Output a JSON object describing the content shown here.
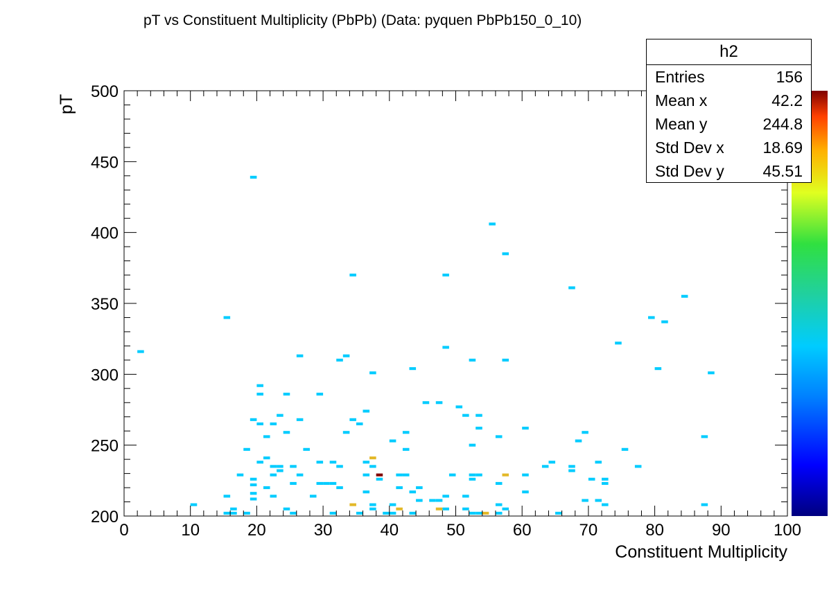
{
  "chart_data": {
    "type": "heatmap",
    "title": "pT vs Constituent Multiplicity (PbPb) (Data: pyquen PbPb150_0_10)",
    "xlabel": "Constituent Multiplicity",
    "ylabel": "pT",
    "xlim": [
      0,
      100
    ],
    "ylim": [
      200,
      500
    ],
    "x_ticks": [
      "0",
      "10",
      "20",
      "30",
      "40",
      "50",
      "60",
      "70",
      "80",
      "90",
      "100"
    ],
    "y_ticks": [
      "200",
      "250",
      "300",
      "350",
      "400",
      "450",
      "500"
    ],
    "bin_width": {
      "x": 1,
      "y": 2
    },
    "colorbar": {
      "min": 0,
      "max": 3,
      "palette": "rainbow (blue → cyan → green → yellow → red → dark red)"
    },
    "cells": [
      [
        2,
        315,
        1
      ],
      [
        10,
        207,
        1
      ],
      [
        15,
        201,
        1
      ],
      [
        16,
        201,
        1
      ],
      [
        15,
        213,
        1
      ],
      [
        15,
        339,
        1
      ],
      [
        16,
        204,
        1
      ],
      [
        17,
        228,
        1
      ],
      [
        18,
        201,
        1
      ],
      [
        18,
        246,
        1
      ],
      [
        19,
        438,
        1
      ],
      [
        19,
        267,
        1
      ],
      [
        19,
        225,
        1
      ],
      [
        19,
        221,
        1
      ],
      [
        19,
        215,
        1
      ],
      [
        19,
        211,
        1
      ],
      [
        20,
        291,
        1
      ],
      [
        20,
        285,
        1
      ],
      [
        20,
        264,
        1
      ],
      [
        20,
        237,
        1
      ],
      [
        21,
        255,
        1
      ],
      [
        21,
        240,
        1
      ],
      [
        21,
        219,
        1
      ],
      [
        22,
        264,
        1
      ],
      [
        22,
        234,
        1
      ],
      [
        22,
        228,
        1
      ],
      [
        22,
        213,
        1
      ],
      [
        23,
        270,
        1
      ],
      [
        23,
        234,
        1
      ],
      [
        23,
        231,
        1
      ],
      [
        24,
        285,
        1
      ],
      [
        24,
        258,
        1
      ],
      [
        24,
        204,
        1
      ],
      [
        25,
        234,
        1
      ],
      [
        25,
        222,
        1
      ],
      [
        25,
        201,
        1
      ],
      [
        26,
        312,
        1
      ],
      [
        26,
        267,
        1
      ],
      [
        26,
        228,
        1
      ],
      [
        27,
        246,
        1
      ],
      [
        28,
        213,
        1
      ],
      [
        29,
        285,
        1
      ],
      [
        29,
        237,
        1
      ],
      [
        29,
        222,
        1
      ],
      [
        30,
        222,
        1
      ],
      [
        31,
        222,
        1
      ],
      [
        31,
        237,
        1
      ],
      [
        31,
        201,
        1
      ],
      [
        32,
        309,
        1
      ],
      [
        32,
        234,
        1
      ],
      [
        32,
        219,
        1
      ],
      [
        33,
        312,
        1
      ],
      [
        33,
        258,
        1
      ],
      [
        34,
        369,
        1
      ],
      [
        34,
        267,
        1
      ],
      [
        34,
        207,
        2
      ],
      [
        35,
        264,
        1
      ],
      [
        35,
        201,
        1
      ],
      [
        36,
        273,
        1
      ],
      [
        36,
        237,
        1
      ],
      [
        36,
        228,
        1
      ],
      [
        36,
        216,
        1
      ],
      [
        37,
        300,
        1
      ],
      [
        37,
        240,
        2
      ],
      [
        37,
        234,
        1
      ],
      [
        37,
        207,
        1
      ],
      [
        37,
        204,
        1
      ],
      [
        38,
        228,
        3
      ],
      [
        38,
        225,
        1
      ],
      [
        39,
        201,
        1
      ],
      [
        40,
        252,
        1
      ],
      [
        40,
        207,
        1
      ],
      [
        40,
        201,
        1
      ],
      [
        41,
        228,
        1
      ],
      [
        41,
        219,
        1
      ],
      [
        41,
        204,
        2
      ],
      [
        42,
        258,
        1
      ],
      [
        42,
        246,
        1
      ],
      [
        42,
        228,
        1
      ],
      [
        43,
        303,
        1
      ],
      [
        43,
        216,
        1
      ],
      [
        43,
        201,
        1
      ],
      [
        44,
        219,
        1
      ],
      [
        44,
        210,
        1
      ],
      [
        45,
        279,
        1
      ],
      [
        46,
        210,
        1
      ],
      [
        47,
        279,
        1
      ],
      [
        47,
        210,
        1
      ],
      [
        47,
        204,
        2
      ],
      [
        48,
        369,
        1
      ],
      [
        48,
        318,
        1
      ],
      [
        48,
        213,
        1
      ],
      [
        48,
        204,
        1
      ],
      [
        49,
        228,
        1
      ],
      [
        50,
        276,
        1
      ],
      [
        51,
        270,
        1
      ],
      [
        51,
        204,
        1
      ],
      [
        51,
        213,
        1
      ],
      [
        52,
        309,
        1
      ],
      [
        52,
        249,
        1
      ],
      [
        52,
        228,
        1
      ],
      [
        52,
        225,
        1
      ],
      [
        52,
        201,
        1
      ],
      [
        53,
        270,
        1
      ],
      [
        53,
        261,
        1
      ],
      [
        53,
        228,
        1
      ],
      [
        53,
        201,
        1
      ],
      [
        54,
        201,
        2
      ],
      [
        55,
        405,
        1
      ],
      [
        56,
        255,
        1
      ],
      [
        56,
        222,
        1
      ],
      [
        56,
        207,
        1
      ],
      [
        56,
        201,
        1
      ],
      [
        57,
        384,
        1
      ],
      [
        57,
        309,
        1
      ],
      [
        57,
        228,
        2
      ],
      [
        57,
        204,
        1
      ],
      [
        60,
        261,
        1
      ],
      [
        60,
        228,
        1
      ],
      [
        60,
        216,
        1
      ],
      [
        63,
        234,
        1
      ],
      [
        64,
        237,
        1
      ],
      [
        65,
        201,
        1
      ],
      [
        67,
        360,
        1
      ],
      [
        67,
        234,
        1
      ],
      [
        67,
        231,
        1
      ],
      [
        68,
        252,
        1
      ],
      [
        69,
        258,
        1
      ],
      [
        69,
        210,
        1
      ],
      [
        70,
        225,
        1
      ],
      [
        71,
        237,
        1
      ],
      [
        71,
        210,
        1
      ],
      [
        72,
        225,
        1
      ],
      [
        72,
        222,
        1
      ],
      [
        72,
        207,
        1
      ],
      [
        74,
        321,
        1
      ],
      [
        75,
        246,
        1
      ],
      [
        77,
        234,
        1
      ],
      [
        79,
        339,
        1
      ],
      [
        80,
        303,
        1
      ],
      [
        81,
        336,
        1
      ],
      [
        84,
        354,
        1
      ],
      [
        87,
        255,
        1
      ],
      [
        87,
        207,
        1
      ],
      [
        88,
        300,
        1
      ]
    ]
  },
  "stats": {
    "name": "h2",
    "rows": [
      {
        "label": "Entries",
        "value": "156"
      },
      {
        "label": "Mean x",
        "value": "42.2"
      },
      {
        "label": "Mean y",
        "value": "244.8"
      },
      {
        "label": "Std Dev x",
        "value": "18.69"
      },
      {
        "label": "Std Dev y",
        "value": "45.51"
      }
    ]
  }
}
